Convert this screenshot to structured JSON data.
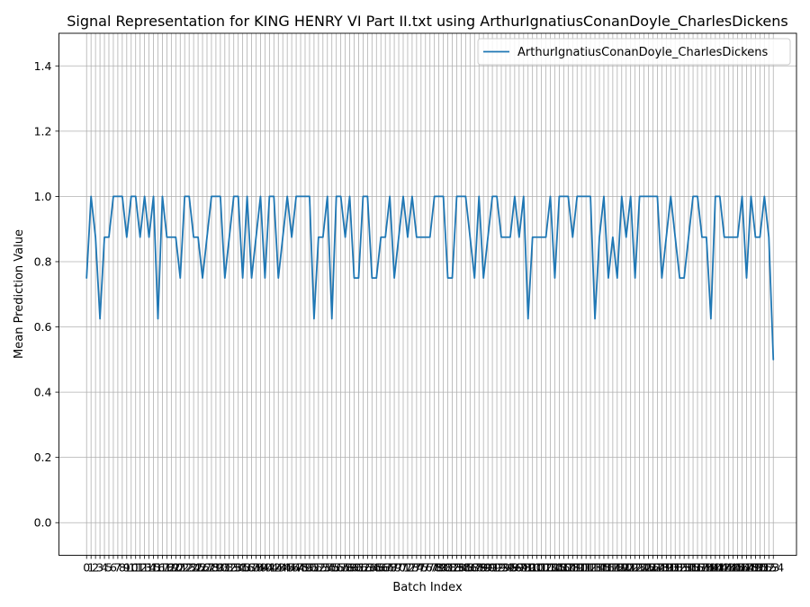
{
  "chart_data": {
    "type": "line",
    "title": "Signal Representation for KING HENRY VI Part II.txt using ArthurIgnatiusConanDoyle_CharlesDickens",
    "xlabel": "Batch Index",
    "ylabel": "Mean Prediction Value",
    "xlim": [
      -6.2,
      159.2
    ],
    "ylim": [
      -0.1,
      1.5
    ],
    "yticks": [
      0.0,
      0.2,
      0.4,
      0.6,
      0.8,
      1.0,
      1.2,
      1.4
    ],
    "grid": true,
    "legend": "top-right",
    "series": [
      {
        "name": "ArthurIgnatiusConanDoyle_CharlesDickens",
        "color": "#1f77b4",
        "x_start": 0,
        "values": [
          0.75,
          1.0,
          0.875,
          0.625,
          0.875,
          0.875,
          1.0,
          1.0,
          1.0,
          0.875,
          1.0,
          1.0,
          0.875,
          1.0,
          0.875,
          1.0,
          0.625,
          1.0,
          0.875,
          0.875,
          0.875,
          0.75,
          1.0,
          1.0,
          0.875,
          0.875,
          0.75,
          0.875,
          1.0,
          1.0,
          1.0,
          0.75,
          0.875,
          1.0,
          1.0,
          0.75,
          1.0,
          0.75,
          0.875,
          1.0,
          0.75,
          1.0,
          1.0,
          0.75,
          0.875,
          1.0,
          0.875,
          1.0,
          1.0,
          1.0,
          1.0,
          0.625,
          0.875,
          0.875,
          1.0,
          0.625,
          1.0,
          1.0,
          0.875,
          1.0,
          0.75,
          0.75,
          1.0,
          1.0,
          0.75,
          0.75,
          0.875,
          0.875,
          1.0,
          0.75,
          0.875,
          1.0,
          0.875,
          1.0,
          0.875,
          0.875,
          0.875,
          0.875,
          1.0,
          1.0,
          1.0,
          0.75,
          0.75,
          1.0,
          1.0,
          1.0,
          0.875,
          0.75,
          1.0,
          0.75,
          0.875,
          1.0,
          1.0,
          0.875,
          0.875,
          0.875,
          1.0,
          0.875,
          1.0,
          0.625,
          0.875,
          0.875,
          0.875,
          0.875,
          1.0,
          0.75,
          1.0,
          1.0,
          1.0,
          0.875,
          1.0,
          1.0,
          1.0,
          1.0,
          0.625,
          0.875,
          1.0,
          0.75,
          0.875,
          0.75,
          1.0,
          0.875,
          1.0,
          0.75,
          1.0,
          1.0,
          1.0,
          1.0,
          1.0,
          0.75,
          0.875,
          1.0,
          0.875,
          0.75,
          0.75,
          0.875,
          1.0,
          1.0,
          0.875,
          0.875,
          0.625,
          1.0,
          1.0,
          0.875,
          0.875,
          0.875,
          0.875,
          1.0,
          0.75,
          1.0,
          0.875,
          0.875,
          1.0,
          0.875,
          0.5
        ]
      }
    ]
  }
}
